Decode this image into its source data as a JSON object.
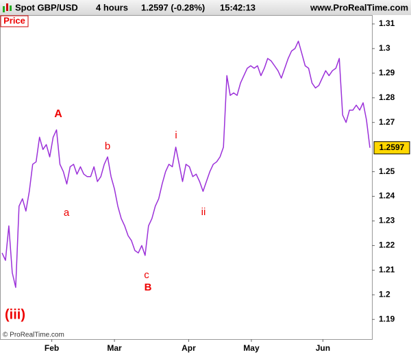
{
  "chart_data": {
    "type": "line",
    "header": {
      "instrument": "Spot GBP/USD",
      "timeframe": "4 hours",
      "price": "1.2597 (-0.28%)",
      "time": "15:42:13",
      "site": "www.ProRealTime.com"
    },
    "panel_label": "Price",
    "copyright": "© ProRealTime.com",
    "color": "#9b30d9",
    "values": [
      1.217,
      1.214,
      1.228,
      1.209,
      1.203,
      1.236,
      1.239,
      1.234,
      1.242,
      1.253,
      1.254,
      1.264,
      1.259,
      1.261,
      1.256,
      1.264,
      1.267,
      1.253,
      1.25,
      1.245,
      1.252,
      1.253,
      1.249,
      1.252,
      1.249,
      1.248,
      1.248,
      1.252,
      1.246,
      1.248,
      1.253,
      1.256,
      1.248,
      1.243,
      1.236,
      1.231,
      1.228,
      1.224,
      1.222,
      1.218,
      1.217,
      1.22,
      1.216,
      1.228,
      1.231,
      1.236,
      1.239,
      1.245,
      1.25,
      1.253,
      1.252,
      1.26,
      1.253,
      1.246,
      1.253,
      1.252,
      1.248,
      1.249,
      1.246,
      1.242,
      1.246,
      1.25,
      1.253,
      1.254,
      1.256,
      1.26,
      1.289,
      1.281,
      1.282,
      1.281,
      1.286,
      1.289,
      1.292,
      1.293,
      1.292,
      1.293,
      1.289,
      1.292,
      1.296,
      1.295,
      1.293,
      1.291,
      1.288,
      1.292,
      1.296,
      1.299,
      1.3,
      1.303,
      1.298,
      1.293,
      1.292,
      1.286,
      1.284,
      1.285,
      1.288,
      1.291,
      1.289,
      1.291,
      1.292,
      1.296,
      1.273,
      1.27,
      1.275,
      1.275,
      1.277,
      1.275,
      1.278,
      1.271,
      1.2597
    ],
    "xlim": [
      -0.6,
      108.6
    ],
    "xticks": [
      {
        "value": 14.6,
        "label": "Feb"
      },
      {
        "value": 33,
        "label": "Mar"
      },
      {
        "value": 54.8,
        "label": "Apr"
      },
      {
        "value": 73.2,
        "label": "May"
      },
      {
        "value": 94.2,
        "label": "Jun"
      }
    ],
    "ylim": [
      1.182,
      1.3136
    ],
    "yticks": [
      1.19,
      1.2,
      1.21,
      1.22,
      1.23,
      1.24,
      1.25,
      1.27,
      1.28,
      1.29,
      1.3,
      1.31
    ],
    "annotations": [
      "A",
      "a",
      "b",
      "c",
      "B",
      "i",
      "ii",
      "(iii)"
    ]
  }
}
